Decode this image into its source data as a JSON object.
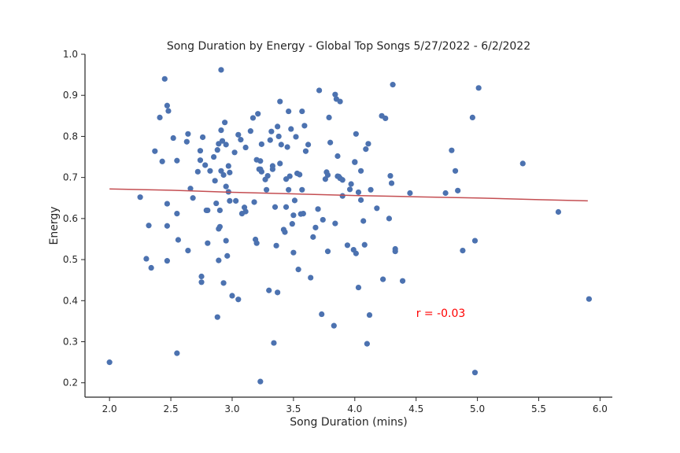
{
  "chart_data": {
    "type": "scatter",
    "title": "Song Duration by Energy - Global Top Songs 5/27/2022 - 6/2/2022",
    "xlabel": "Song Duration (mins)",
    "ylabel": "Energy",
    "xlim": [
      1.8,
      6.1
    ],
    "ylim": [
      0.165,
      1.0
    ],
    "xticks": [
      2.0,
      2.5,
      3.0,
      3.5,
      4.0,
      4.5,
      5.0,
      5.5,
      6.0
    ],
    "xtick_labels": [
      "2.0",
      "2.5",
      "3.0",
      "3.5",
      "4.0",
      "4.5",
      "5.0",
      "5.5",
      "6.0"
    ],
    "yticks": [
      0.2,
      0.3,
      0.4,
      0.5,
      0.6,
      0.7,
      0.8,
      0.9,
      1.0
    ],
    "ytick_labels": [
      "0.2",
      "0.3",
      "0.4",
      "0.5",
      "0.6",
      "0.7",
      "0.8",
      "0.9",
      "1.0"
    ],
    "grid": false,
    "point_color": "#4c72b0",
    "line_color": "#c44e52",
    "annotation": {
      "text": "r = -0.03",
      "x": 4.5,
      "y": 0.36,
      "color": "#ff0000"
    },
    "trend_line": [
      [
        2.0,
        0.672
      ],
      [
        2.5,
        0.669
      ],
      [
        3.0,
        0.664
      ],
      [
        3.5,
        0.66
      ],
      [
        4.0,
        0.656
      ],
      [
        4.5,
        0.653
      ],
      [
        5.0,
        0.65
      ],
      [
        5.5,
        0.646
      ],
      [
        5.9,
        0.643
      ]
    ],
    "points": [
      [
        2.0,
        0.25
      ],
      [
        2.25,
        0.652
      ],
      [
        2.3,
        0.502
      ],
      [
        2.32,
        0.583
      ],
      [
        2.34,
        0.48
      ],
      [
        2.37,
        0.764
      ],
      [
        2.41,
        0.846
      ],
      [
        2.43,
        0.739
      ],
      [
        2.45,
        0.94
      ],
      [
        2.47,
        0.875
      ],
      [
        2.48,
        0.862
      ],
      [
        2.47,
        0.636
      ],
      [
        2.47,
        0.582
      ],
      [
        2.47,
        0.497
      ],
      [
        2.52,
        0.796
      ],
      [
        2.55,
        0.741
      ],
      [
        2.55,
        0.612
      ],
      [
        2.56,
        0.548
      ],
      [
        2.55,
        0.272
      ],
      [
        2.63,
        0.787
      ],
      [
        2.64,
        0.806
      ],
      [
        2.64,
        0.522
      ],
      [
        2.66,
        0.673
      ],
      [
        2.68,
        0.65
      ],
      [
        2.72,
        0.714
      ],
      [
        2.74,
        0.765
      ],
      [
        2.74,
        0.742
      ],
      [
        2.75,
        0.459
      ],
      [
        2.75,
        0.445
      ],
      [
        2.76,
        0.798
      ],
      [
        2.78,
        0.73
      ],
      [
        2.79,
        0.62
      ],
      [
        2.8,
        0.62
      ],
      [
        2.8,
        0.54
      ],
      [
        2.82,
        0.716
      ],
      [
        2.85,
        0.75
      ],
      [
        2.86,
        0.692
      ],
      [
        2.87,
        0.637
      ],
      [
        2.88,
        0.767
      ],
      [
        2.88,
        0.36
      ],
      [
        2.89,
        0.782
      ],
      [
        2.89,
        0.575
      ],
      [
        2.89,
        0.498
      ],
      [
        2.9,
        0.58
      ],
      [
        2.9,
        0.62
      ],
      [
        2.91,
        0.962
      ],
      [
        2.91,
        0.815
      ],
      [
        2.91,
        0.716
      ],
      [
        2.92,
        0.789
      ],
      [
        2.93,
        0.443
      ],
      [
        2.93,
        0.706
      ],
      [
        2.94,
        0.834
      ],
      [
        2.95,
        0.78
      ],
      [
        2.95,
        0.678
      ],
      [
        2.95,
        0.546
      ],
      [
        2.96,
        0.509
      ],
      [
        2.97,
        0.728
      ],
      [
        2.97,
        0.665
      ],
      [
        2.98,
        0.712
      ],
      [
        2.98,
        0.643
      ],
      [
        3.0,
        0.412
      ],
      [
        3.02,
        0.761
      ],
      [
        3.03,
        0.643
      ],
      [
        3.05,
        0.403
      ],
      [
        3.05,
        0.804
      ],
      [
        3.07,
        0.792
      ],
      [
        3.08,
        0.612
      ],
      [
        3.1,
        0.627
      ],
      [
        3.11,
        0.617
      ],
      [
        3.11,
        0.773
      ],
      [
        3.15,
        0.813
      ],
      [
        3.17,
        0.845
      ],
      [
        3.18,
        0.64
      ],
      [
        3.19,
        0.549
      ],
      [
        3.2,
        0.54
      ],
      [
        3.2,
        0.743
      ],
      [
        3.21,
        0.855
      ],
      [
        3.22,
        0.72
      ],
      [
        3.23,
        0.72
      ],
      [
        3.23,
        0.74
      ],
      [
        3.23,
        0.203
      ],
      [
        3.24,
        0.714
      ],
      [
        3.24,
        0.781
      ],
      [
        3.27,
        0.695
      ],
      [
        3.28,
        0.67
      ],
      [
        3.29,
        0.704
      ],
      [
        3.3,
        0.425
      ],
      [
        3.31,
        0.791
      ],
      [
        3.32,
        0.812
      ],
      [
        3.33,
        0.728
      ],
      [
        3.33,
        0.72
      ],
      [
        3.34,
        0.297
      ],
      [
        3.35,
        0.628
      ],
      [
        3.36,
        0.534
      ],
      [
        3.37,
        0.42
      ],
      [
        3.37,
        0.824
      ],
      [
        3.38,
        0.8
      ],
      [
        3.39,
        0.885
      ],
      [
        3.39,
        0.734
      ],
      [
        3.4,
        0.78
      ],
      [
        3.42,
        0.573
      ],
      [
        3.43,
        0.567
      ],
      [
        3.44,
        0.696
      ],
      [
        3.44,
        0.628
      ],
      [
        3.45,
        0.774
      ],
      [
        3.46,
        0.861
      ],
      [
        3.46,
        0.67
      ],
      [
        3.47,
        0.703
      ],
      [
        3.48,
        0.818
      ],
      [
        3.49,
        0.587
      ],
      [
        3.5,
        0.517
      ],
      [
        3.5,
        0.608
      ],
      [
        3.51,
        0.644
      ],
      [
        3.52,
        0.799
      ],
      [
        3.53,
        0.71
      ],
      [
        3.54,
        0.476
      ],
      [
        3.55,
        0.707
      ],
      [
        3.56,
        0.611
      ],
      [
        3.57,
        0.861
      ],
      [
        3.57,
        0.67
      ],
      [
        3.58,
        0.612
      ],
      [
        3.59,
        0.826
      ],
      [
        3.6,
        0.764
      ],
      [
        3.62,
        0.78
      ],
      [
        3.64,
        0.456
      ],
      [
        3.66,
        0.555
      ],
      [
        3.68,
        0.578
      ],
      [
        3.7,
        0.623
      ],
      [
        3.71,
        0.912
      ],
      [
        3.73,
        0.367
      ],
      [
        3.74,
        0.597
      ],
      [
        3.76,
        0.696
      ],
      [
        3.77,
        0.713
      ],
      [
        3.78,
        0.706
      ],
      [
        3.78,
        0.52
      ],
      [
        3.79,
        0.846
      ],
      [
        3.8,
        0.785
      ],
      [
        3.83,
        0.339
      ],
      [
        3.84,
        0.588
      ],
      [
        3.84,
        0.902
      ],
      [
        3.85,
        0.891
      ],
      [
        3.86,
        0.752
      ],
      [
        3.86,
        0.703
      ],
      [
        3.87,
        0.702
      ],
      [
        3.88,
        0.885
      ],
      [
        3.88,
        0.698
      ],
      [
        3.9,
        0.694
      ],
      [
        3.9,
        0.655
      ],
      [
        3.94,
        0.535
      ],
      [
        3.96,
        0.671
      ],
      [
        3.97,
        0.684
      ],
      [
        3.99,
        0.524
      ],
      [
        4.0,
        0.737
      ],
      [
        4.0,
        0.738
      ],
      [
        4.01,
        0.806
      ],
      [
        4.01,
        0.515
      ],
      [
        4.03,
        0.664
      ],
      [
        4.03,
        0.432
      ],
      [
        4.05,
        0.645
      ],
      [
        4.05,
        0.716
      ],
      [
        4.07,
        0.594
      ],
      [
        4.08,
        0.536
      ],
      [
        4.09,
        0.769
      ],
      [
        4.1,
        0.295
      ],
      [
        4.11,
        0.782
      ],
      [
        4.12,
        0.365
      ],
      [
        4.13,
        0.67
      ],
      [
        4.18,
        0.625
      ],
      [
        4.22,
        0.85
      ],
      [
        4.23,
        0.452
      ],
      [
        4.25,
        0.844
      ],
      [
        4.28,
        0.6
      ],
      [
        4.29,
        0.704
      ],
      [
        4.3,
        0.686
      ],
      [
        4.31,
        0.926
      ],
      [
        4.33,
        0.526
      ],
      [
        4.33,
        0.52
      ],
      [
        4.39,
        0.448
      ],
      [
        4.45,
        0.662
      ],
      [
        4.74,
        0.662
      ],
      [
        4.79,
        0.766
      ],
      [
        4.82,
        0.716
      ],
      [
        4.84,
        0.668
      ],
      [
        4.88,
        0.522
      ],
      [
        4.96,
        0.846
      ],
      [
        4.98,
        0.546
      ],
      [
        4.98,
        0.225
      ],
      [
        5.01,
        0.918
      ],
      [
        5.37,
        0.734
      ],
      [
        5.66,
        0.616
      ],
      [
        5.91,
        0.404
      ]
    ]
  }
}
